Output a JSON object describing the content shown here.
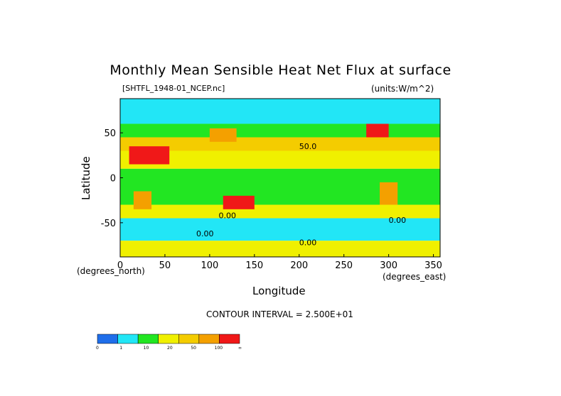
{
  "chart_data": {
    "type": "heatmap",
    "title": "Monthly Mean Sensible Heat Net Flux at surface",
    "subtitle_left": "[SHTFL_1948-01_NCEP.nc]",
    "subtitle_right": "(units:W/m^2)",
    "xlabel": "Longitude",
    "ylabel": "Latitude",
    "x_unit_note": "(degrees_east)",
    "y_unit_note": "(degrees_north)",
    "xlim": [
      0,
      357.5
    ],
    "ylim": [
      -88,
      88
    ],
    "x_ticks": [
      "0",
      "50",
      "100",
      "150",
      "200",
      "250",
      "300",
      "350"
    ],
    "x_tick_values": [
      0,
      50,
      100,
      150,
      200,
      250,
      300,
      350
    ],
    "y_ticks": [
      "50",
      "0",
      "-50"
    ],
    "y_tick_values": [
      50,
      0,
      -50
    ],
    "contour_interval": "CONTOUR INTERVAL = 2.500E+01",
    "contour_labels": [
      "50.0",
      "0.00",
      "0.00",
      "0.00",
      "0.00"
    ],
    "colorbar": {
      "boundaries": [
        "0",
        "1",
        "10",
        "20",
        "50",
        "100",
        "∞"
      ],
      "colors": [
        "#1f6eea",
        "#22e6f6",
        "#22e622",
        "#f0f000",
        "#f4cc00",
        "#f4a000",
        "#f01818"
      ]
    },
    "regions": [
      {
        "level": 1,
        "lat": [
          60,
          88
        ],
        "lon": [
          0,
          357.5
        ]
      },
      {
        "level": 2,
        "lat": [
          45,
          60
        ],
        "lon": [
          0,
          357.5
        ]
      },
      {
        "level": 4,
        "lat": [
          30,
          45
        ],
        "lon": [
          0,
          357.5
        ]
      },
      {
        "level": 3,
        "lat": [
          10,
          30
        ],
        "lon": [
          0,
          357.5
        ]
      },
      {
        "level": 2,
        "lat": [
          -30,
          10
        ],
        "lon": [
          0,
          357.5
        ]
      },
      {
        "level": 3,
        "lat": [
          -45,
          -30
        ],
        "lon": [
          0,
          357.5
        ]
      },
      {
        "level": 1,
        "lat": [
          -70,
          -45
        ],
        "lon": [
          0,
          357.5
        ]
      },
      {
        "level": 3,
        "lat": [
          -88,
          -70
        ],
        "lon": [
          0,
          357.5
        ]
      },
      {
        "level": 6,
        "lat": [
          15,
          35
        ],
        "lon": [
          10,
          55
        ]
      },
      {
        "level": 5,
        "lat": [
          -35,
          -15
        ],
        "lon": [
          15,
          35
        ]
      },
      {
        "level": 6,
        "lat": [
          -35,
          -20
        ],
        "lon": [
          115,
          150
        ]
      },
      {
        "level": 5,
        "lat": [
          40,
          55
        ],
        "lon": [
          100,
          130
        ]
      },
      {
        "level": 6,
        "lat": [
          45,
          60
        ],
        "lon": [
          275,
          300
        ]
      },
      {
        "level": 5,
        "lat": [
          -30,
          -5
        ],
        "lon": [
          290,
          310
        ]
      }
    ]
  }
}
